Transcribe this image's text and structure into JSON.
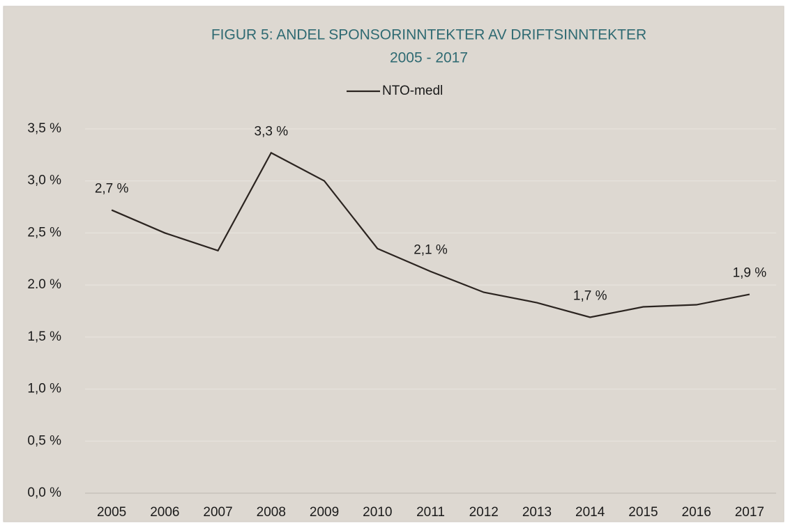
{
  "chart_data": {
    "type": "line",
    "title": "FIGUR 5: ANDEL SPONSORINNTEKTER AV DRIFTSINNTEKTER",
    "subtitle": "2005 - 2017",
    "categories": [
      "2005",
      "2006",
      "2007",
      "2008",
      "2009",
      "2010",
      "2011",
      "2012",
      "2013",
      "2014",
      "2015",
      "2016",
      "2017"
    ],
    "series": [
      {
        "name": "NTO-medl",
        "color": "#2b2420",
        "values": [
          2.72,
          2.5,
          2.33,
          3.27,
          3.0,
          2.35,
          2.13,
          1.93,
          1.83,
          1.69,
          1.79,
          1.81,
          1.91
        ],
        "value_labels": [
          "2,7 %",
          null,
          null,
          "3,3 %",
          null,
          null,
          "2,1 %",
          null,
          null,
          "1,7 %",
          null,
          null,
          "1,9 %"
        ]
      }
    ],
    "ylim": [
      0,
      3.5
    ],
    "yticks": [
      {
        "value": 0,
        "label": "0,0 %"
      },
      {
        "value": 0.5,
        "label": "0,5 %"
      },
      {
        "value": 1,
        "label": "1,0 %"
      },
      {
        "value": 1.5,
        "label": "1,5 %"
      },
      {
        "value": 2,
        "label": "2.0 %"
      },
      {
        "value": 2.5,
        "label": "2,5 %"
      },
      {
        "value": 3,
        "label": "3,0 %"
      },
      {
        "value": 3.5,
        "label": "3,5 %"
      }
    ],
    "grid": true,
    "legend": "top"
  }
}
